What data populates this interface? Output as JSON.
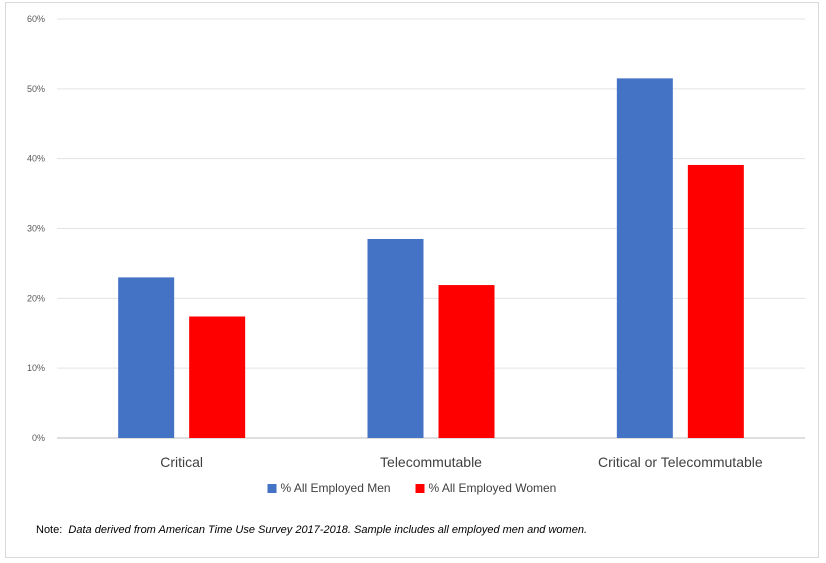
{
  "chart_data": {
    "type": "bar",
    "title": "",
    "xlabel": "",
    "ylabel": "",
    "categories": [
      "Critical",
      "Telecommutable",
      "Critical or Telecommutable"
    ],
    "series": [
      {
        "name": "% All Employed Men",
        "color": "#4472c4",
        "values": [
          23.0,
          28.5,
          51.5
        ]
      },
      {
        "name": "% All Employed Women",
        "color": "#ff0000",
        "values": [
          17.4,
          21.9,
          39.1
        ]
      }
    ],
    "ylim": [
      0,
      60
    ],
    "yticks": [
      0,
      10,
      20,
      30,
      40,
      50,
      60
    ],
    "ytick_labels": [
      "0%",
      "10%",
      "20%",
      "30%",
      "40%",
      "50%",
      "60%"
    ],
    "grid": true,
    "legend_position": "bottom"
  },
  "note": {
    "prefix": "Note:",
    "text": "Data derived from American Time Use Survey 2017-2018. Sample includes all employed men and women."
  }
}
